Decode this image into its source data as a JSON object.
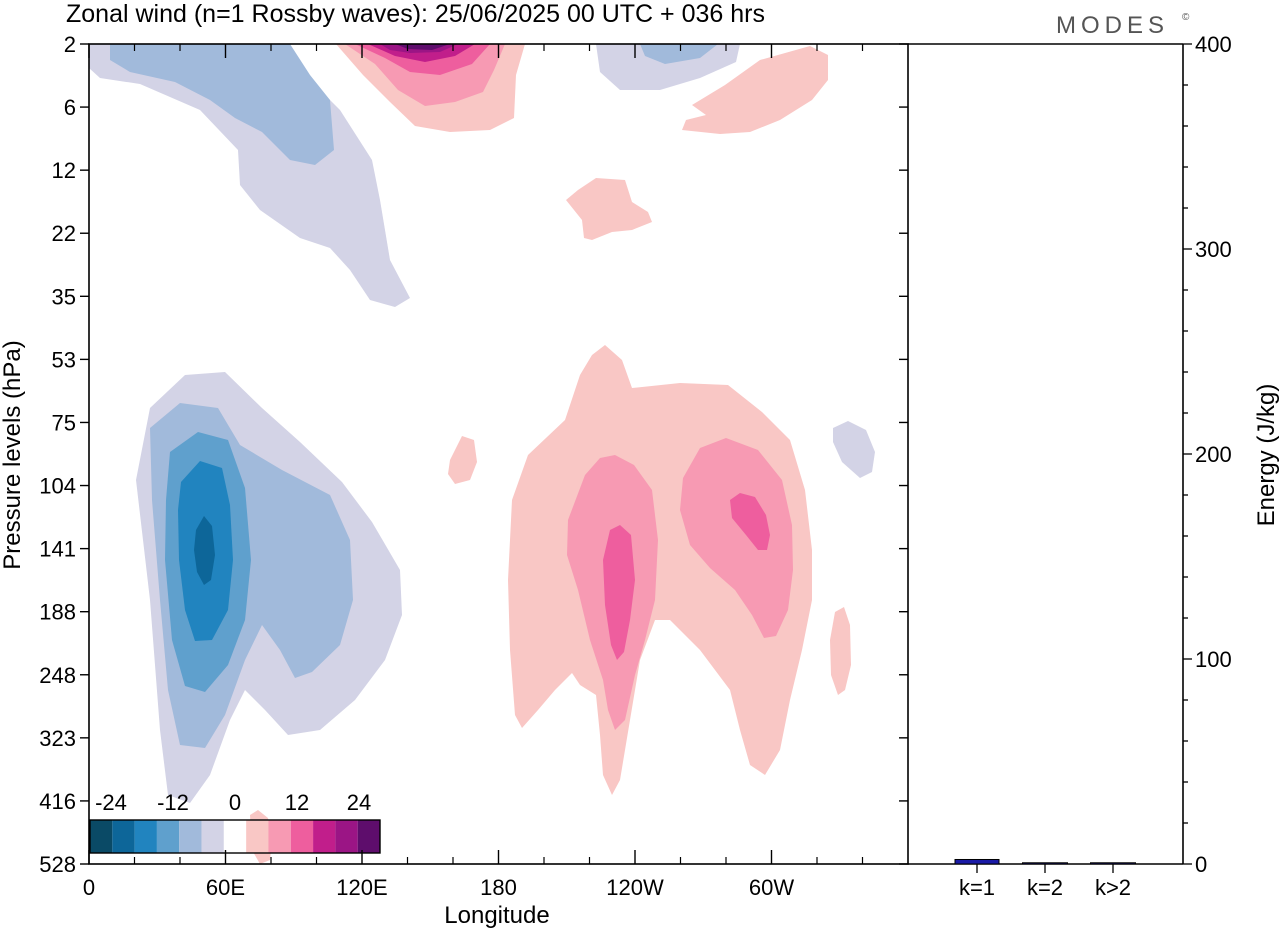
{
  "chart_data": {
    "type": "heatmap",
    "title": "Zonal wind (n=1 Rossby waves):  25/06/2025  00 UTC  + 036 hrs",
    "logo": "MODES",
    "logo_mark": "©",
    "xlabel": "Longitude",
    "ylabel": "Pressure levels (hPa)",
    "x_ticks": [
      "0",
      "60E",
      "120E",
      "180",
      "120W",
      "60W"
    ],
    "y_ticks": [
      "2",
      "6",
      "12",
      "22",
      "35",
      "53",
      "75",
      "104",
      "141",
      "188",
      "248",
      "323",
      "416",
      "528"
    ],
    "colorbar": {
      "labels": [
        "-24",
        "-12",
        "0",
        "12",
        "24"
      ],
      "levels": [
        -30,
        -24,
        -18,
        -12,
        -6,
        0,
        6,
        12,
        18,
        24,
        30
      ],
      "colors": [
        "#0a4a66",
        "#0d6699",
        "#2184bf",
        "#5fa0cd",
        "#a1badb",
        "#d3d3e6",
        "#ffffff",
        "#f9c7c5",
        "#f79ab3",
        "#ee5e9e",
        "#c11e8b",
        "#9b1585",
        "#5e0d6c"
      ]
    },
    "contours": [
      {
        "sign": "negative",
        "lon": 50,
        "level": "141",
        "min_value": -24
      },
      {
        "sign": "positive",
        "lon": 245,
        "level": "141",
        "max_value": 18
      },
      {
        "sign": "positive",
        "lon": 290,
        "level": "104",
        "max_value": 18
      },
      {
        "sign": "positive",
        "lon": 145,
        "level": "2",
        "max_value": 30
      },
      {
        "sign": "negative",
        "lon": 20,
        "level": "6",
        "min_value": -12
      }
    ],
    "energy": {
      "ylabel": "Energy (J/kg)",
      "y_ticks": [
        "0",
        "100",
        "200",
        "300",
        "400"
      ],
      "ylim": [
        0,
        400
      ],
      "categories": [
        "k=1",
        "k=2",
        "k>2"
      ],
      "values": [
        2.2,
        0.6,
        0.6
      ],
      "bar_color": "#1a1aa6"
    }
  }
}
